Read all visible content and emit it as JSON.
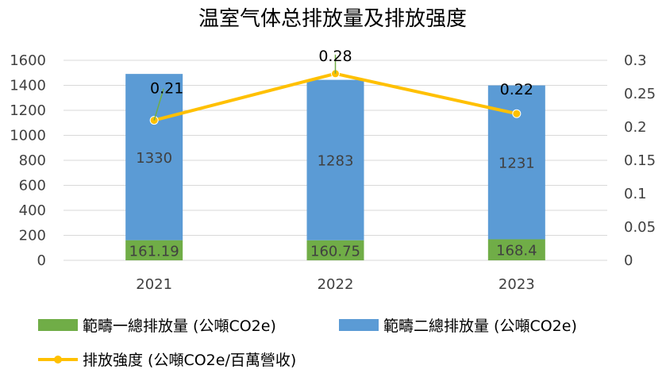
{
  "chart_data": {
    "type": "bar",
    "title": "温室气体总排放量及排放强度",
    "categories": [
      "2021",
      "2022",
      "2023"
    ],
    "stacked": true,
    "series": [
      {
        "name": "範疇一總排放量 (公噸CO2e)",
        "type": "bar",
        "axis": "left",
        "color": "#70ad47",
        "values": [
          161.19,
          160.75,
          168.4
        ],
        "labels": [
          "161.19",
          "160.75",
          "168.4"
        ]
      },
      {
        "name": "範疇二總排放量 (公噸CO2e)",
        "type": "bar",
        "axis": "left",
        "color": "#5b9bd5",
        "values": [
          1330,
          1283,
          1231
        ],
        "labels": [
          "1330",
          "1283",
          "1231"
        ]
      },
      {
        "name": "排放強度 (公噸CO2e/百萬營收)",
        "type": "line",
        "axis": "right",
        "color": "#ffc000",
        "values": [
          0.21,
          0.28,
          0.22
        ],
        "labels": [
          "0.21",
          "0.28",
          "0.22"
        ]
      }
    ],
    "y_left": {
      "min": 0,
      "max": 1600,
      "ticks": [
        "0",
        "200",
        "400",
        "600",
        "800",
        "1000",
        "1200",
        "1400",
        "1600"
      ]
    },
    "y_right": {
      "min": 0,
      "max": 0.3,
      "ticks": [
        "0",
        "0.05",
        "0.1",
        "0.15",
        "0.2",
        "0.25",
        "0.3"
      ]
    },
    "gridlines": true,
    "legend_position": "bottom",
    "label_leader_color": "#70ad47"
  }
}
